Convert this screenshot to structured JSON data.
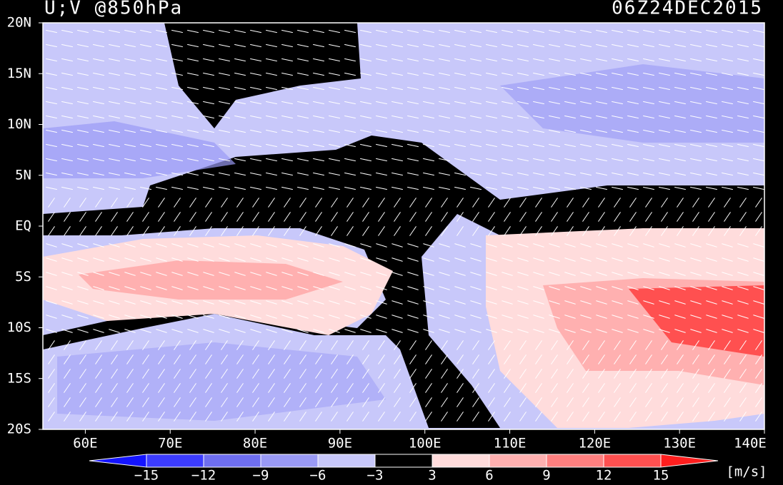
{
  "header": {
    "title": "U;V @850hPa",
    "time": "06Z24DEC2015"
  },
  "map": {
    "lat_labels": [
      "20N",
      "15N",
      "10N",
      "5N",
      "EQ",
      "5S",
      "10S",
      "15S",
      "20S"
    ],
    "lon_labels": [
      "60E",
      "70E",
      "80E",
      "90E",
      "100E",
      "110E",
      "120E",
      "130E",
      "140E"
    ]
  },
  "colorbar": {
    "labels": [
      "−15",
      "−12",
      "−9",
      "−6",
      "−3",
      "3",
      "6",
      "9",
      "12",
      "15"
    ],
    "colors": [
      "#1414ff",
      "#3c3cff",
      "#6e6ef0",
      "#9a9af5",
      "#c8c8fa",
      "#000000",
      "#ffdcdc",
      "#ffb0b0",
      "#ff8080",
      "#ff5050",
      "#ff1e1e"
    ],
    "unit": "[m/s]"
  }
}
